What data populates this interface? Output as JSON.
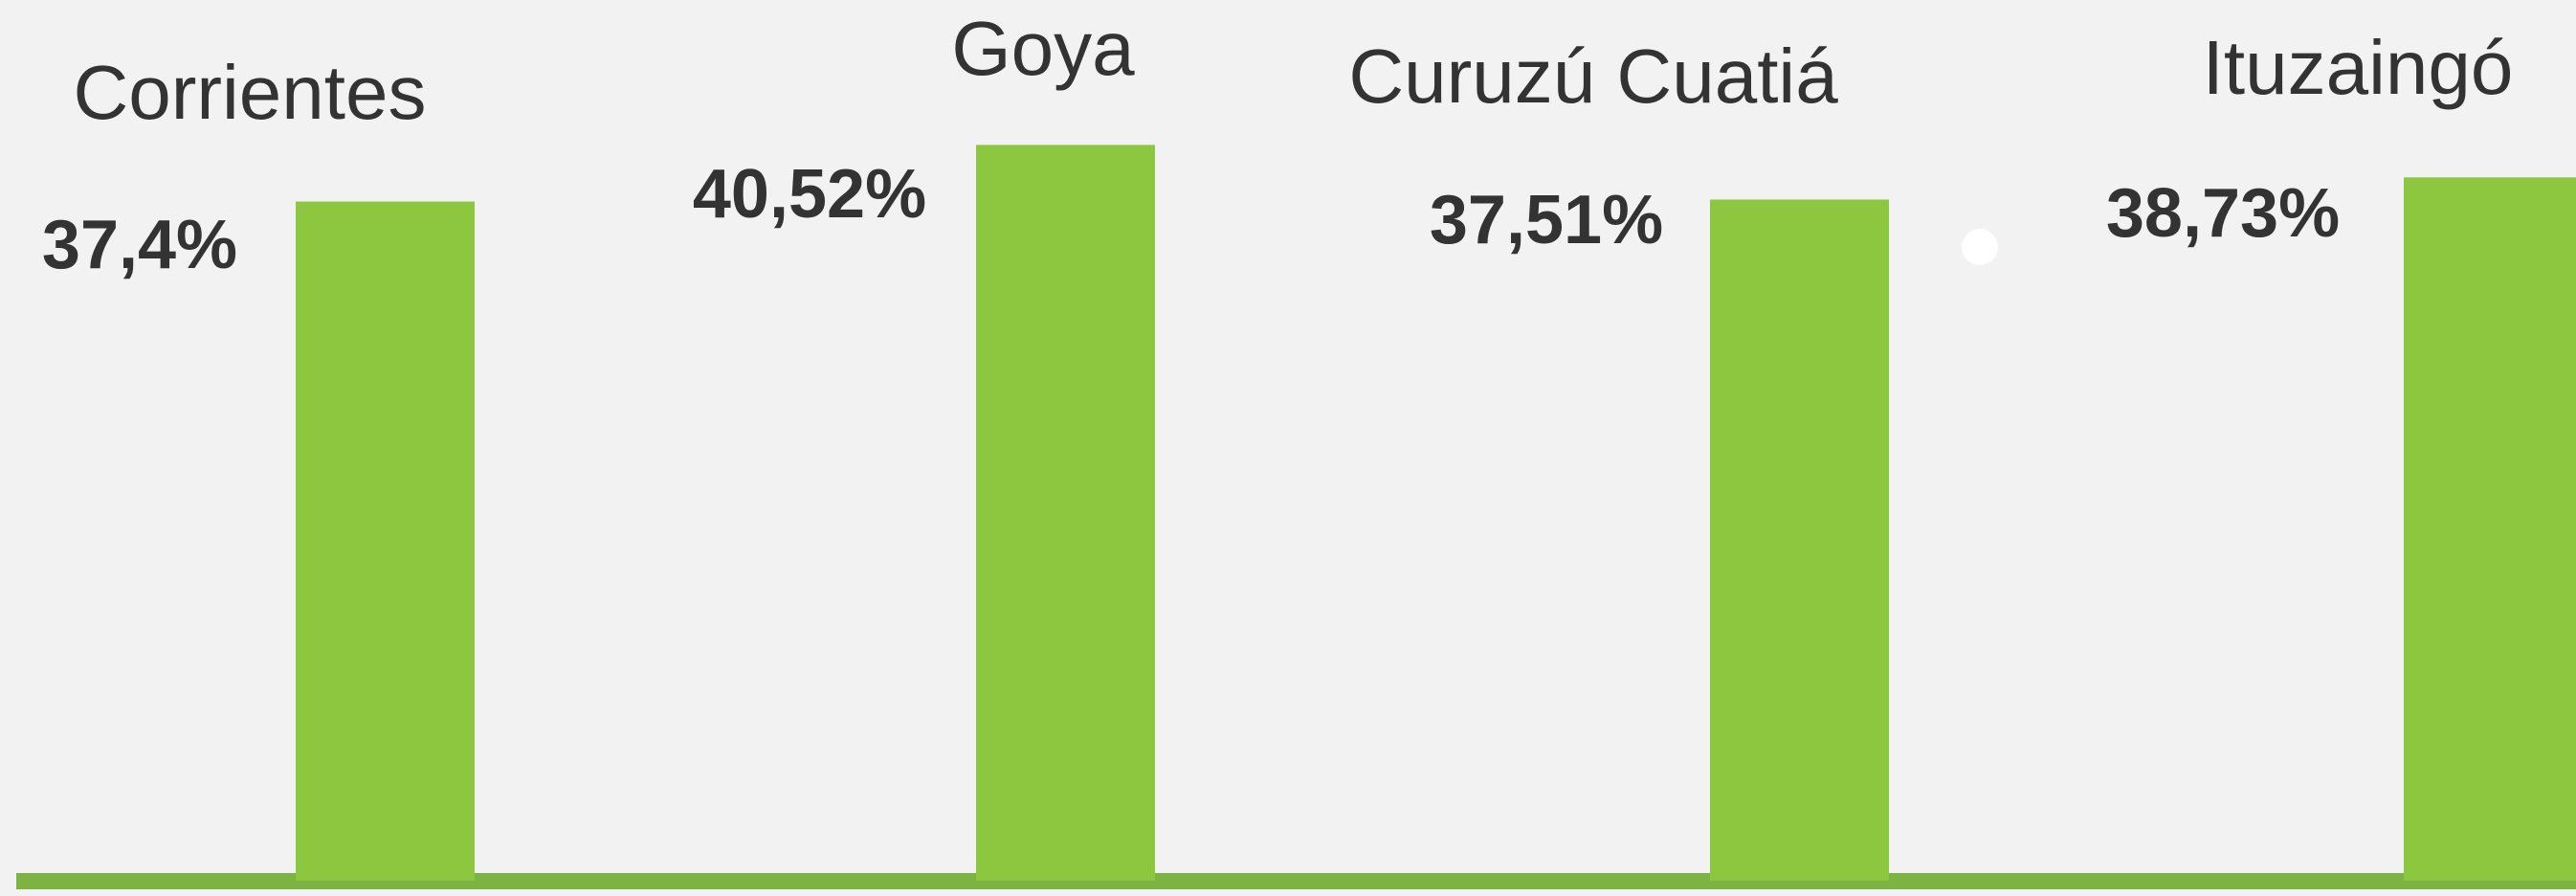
{
  "chart_data": {
    "type": "bar",
    "categories": [
      "Corrientes",
      "Goya",
      "Curuzú Cuatiá",
      "Ituzaingó"
    ],
    "values": [
      37.4,
      40.52,
      37.51,
      38.73
    ],
    "value_labels": [
      "37,4%",
      "40,52%",
      "37,51%",
      "38,73%"
    ],
    "color": "#8dc63f",
    "ylim": [
      0,
      48.5
    ]
  }
}
